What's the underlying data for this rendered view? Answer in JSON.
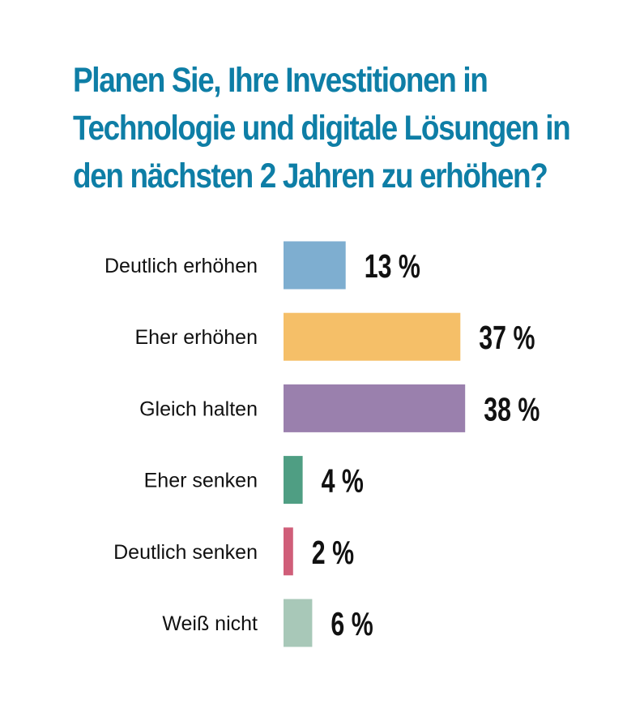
{
  "title_lines": [
    "Planen Sie, Ihre Investitionen in",
    "Technologie und digitale Lösungen in",
    "den nächsten 2 Jahren zu erhöhen?"
  ],
  "chart_data": {
    "type": "bar",
    "orientation": "horizontal",
    "title": "Planen Sie, Ihre Investitionen in Technologie und digitale Lösungen in den nächsten 2 Jahren zu erhöhen?",
    "categories": [
      "Deutlich erhöhen",
      "Eher erhöhen",
      "Gleich halten",
      "Eher senken",
      "Deutlich senken",
      "Weiß nicht"
    ],
    "values": [
      13,
      37,
      38,
      4,
      2,
      6
    ],
    "value_labels": [
      "13 %",
      "37 %",
      "38 %",
      "4 %",
      "2 %",
      "6 %"
    ],
    "unit": "%",
    "colors": [
      "#7eaed0",
      "#f5bf68",
      "#9a80ad",
      "#4f9e83",
      "#d05e79",
      "#a8c8b8"
    ],
    "xlabel": "",
    "ylabel": "",
    "grid": false,
    "legend": "none"
  }
}
